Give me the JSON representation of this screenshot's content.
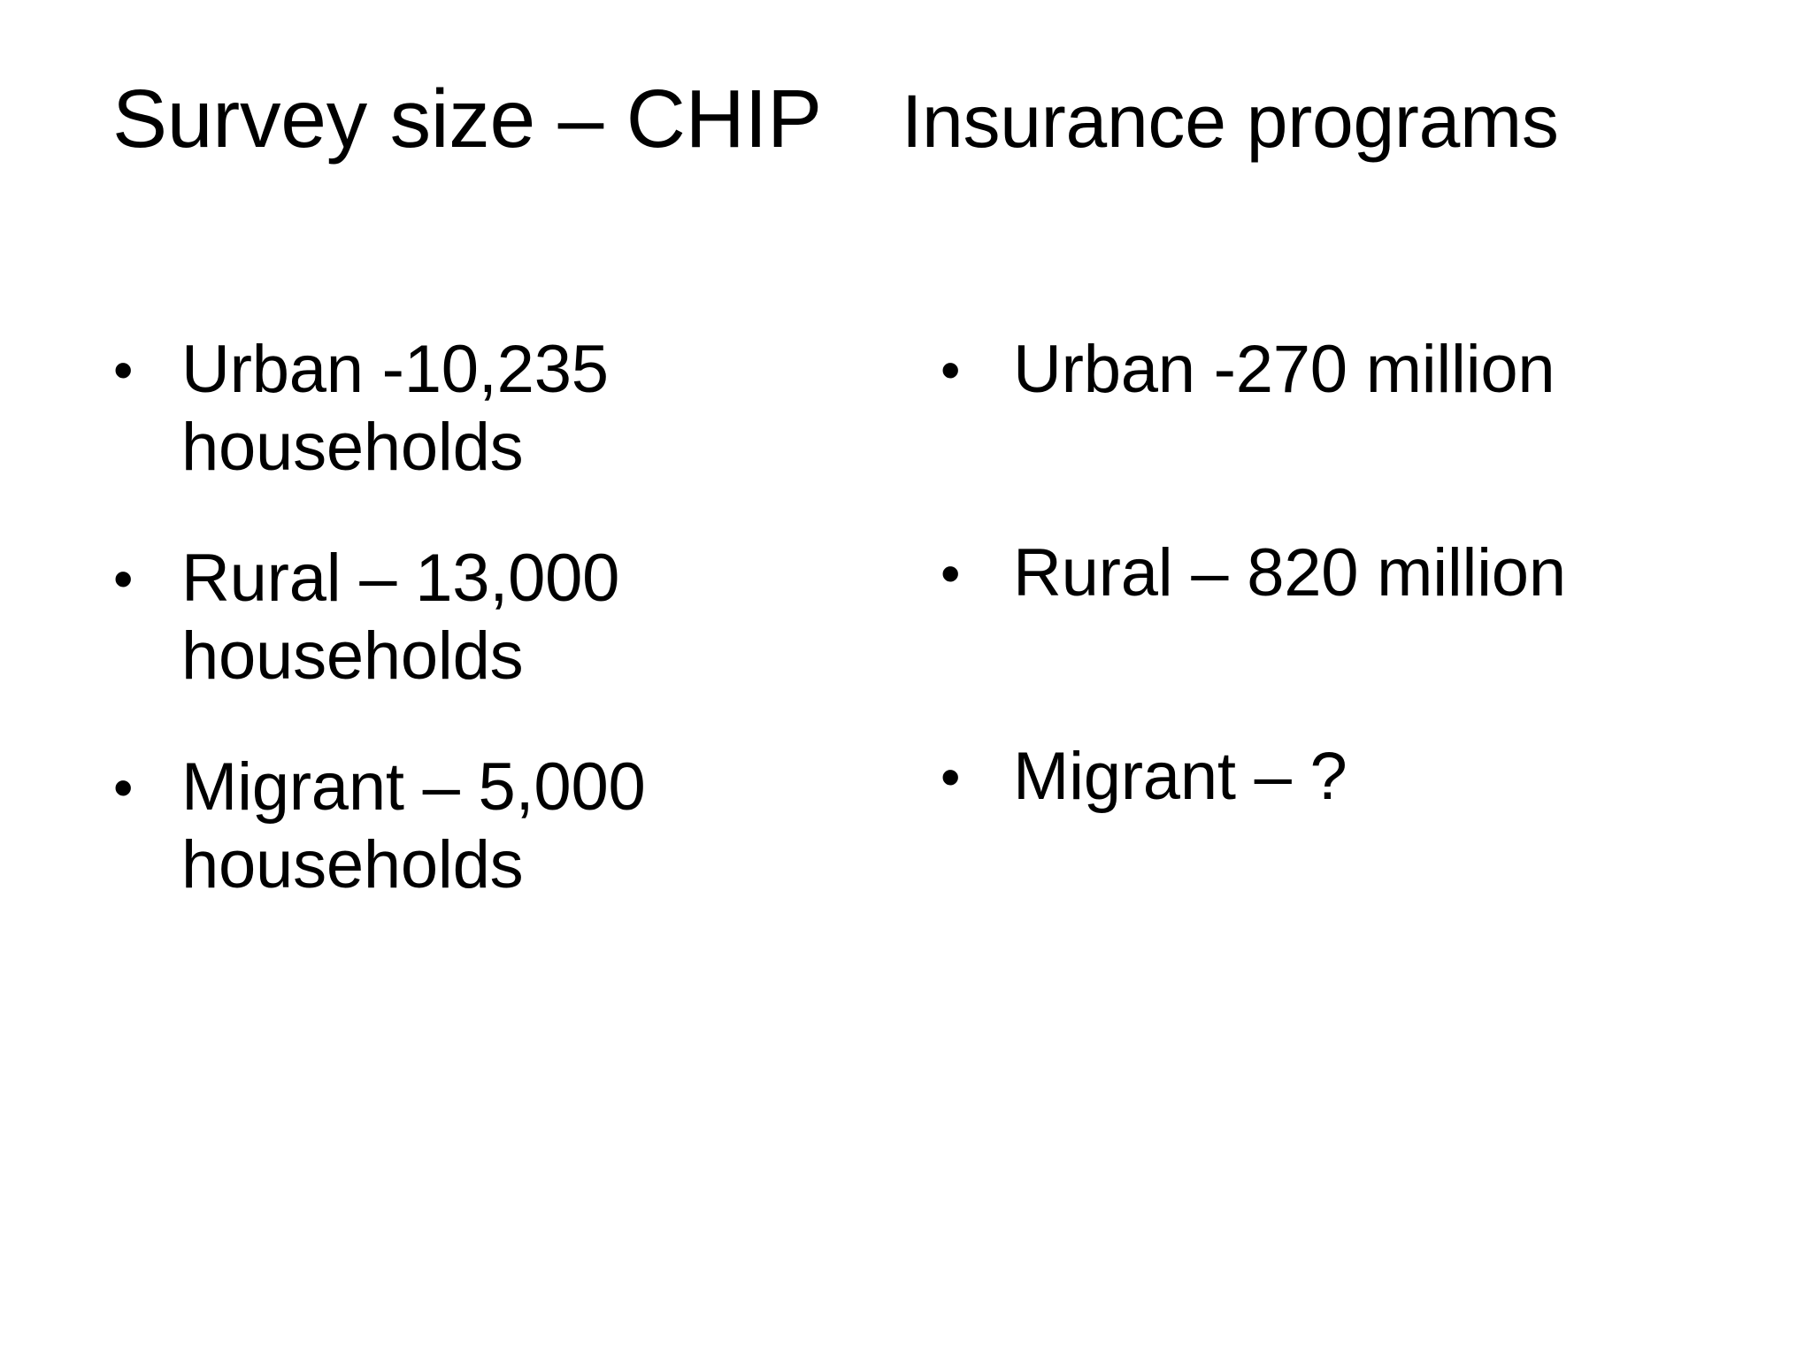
{
  "slide": {
    "colors": {
      "background": "#ffffff",
      "text": "#000000"
    },
    "bullet_glyph": "•",
    "title": {
      "main": "Survey size – CHIP",
      "secondary": "Insurance programs"
    },
    "columns": [
      {
        "items": [
          "Urban -10,235 households",
          "Rural – 13,000 households",
          "Migrant – 5,000 households"
        ]
      },
      {
        "items": [
          "Urban -270 million",
          "Rural – 820 million",
          "Migrant – ?"
        ]
      }
    ]
  }
}
